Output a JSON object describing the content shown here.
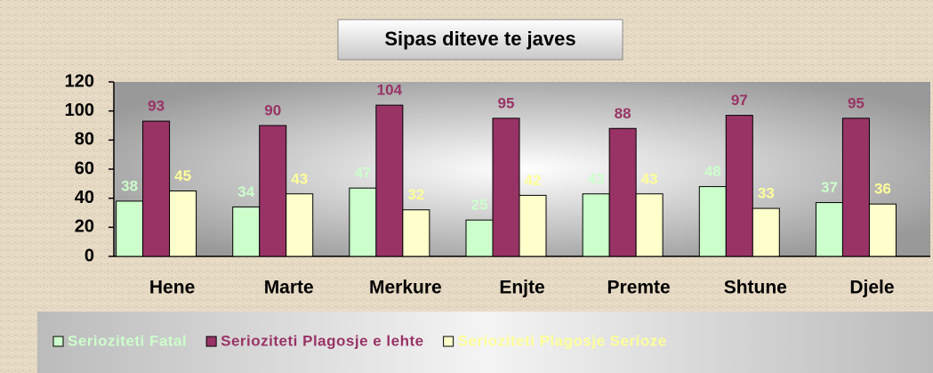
{
  "chart_data": {
    "type": "bar",
    "title": "Sipas diteve te javes",
    "categories": [
      "Hene",
      "Marte",
      "Merkure",
      "Enjte",
      "Premte",
      "Shtune",
      "Djele"
    ],
    "series": [
      {
        "name": "Serioziteti Fatal",
        "color": "#ccffcc",
        "label_color": "#ccffcc",
        "values": [
          38,
          34,
          47,
          25,
          43,
          48,
          37
        ]
      },
      {
        "name": "Serioziteti Plagosje e lehte",
        "color": "#993366",
        "label_color": "#993366",
        "values": [
          93,
          90,
          104,
          95,
          88,
          97,
          95
        ]
      },
      {
        "name": "Serioziteti Plagosje Serioze",
        "color": "#ffffcc",
        "label_color": "#ffff99",
        "values": [
          45,
          43,
          32,
          42,
          43,
          33,
          36
        ]
      }
    ],
    "ylim": [
      0,
      120
    ],
    "yticks": [
      0,
      20,
      40,
      60,
      80,
      100,
      120
    ],
    "legend": "bottom"
  }
}
